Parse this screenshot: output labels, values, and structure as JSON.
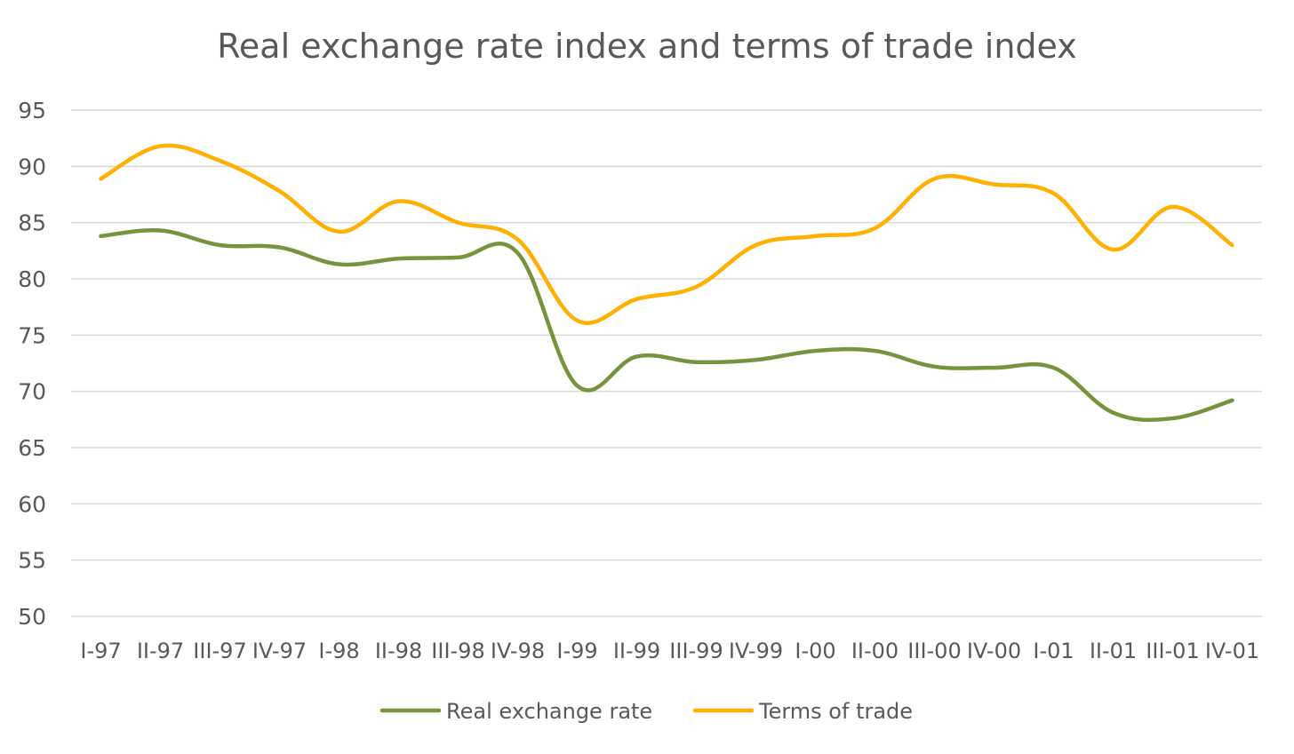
{
  "chart_data": {
    "type": "line",
    "title": "Real exchange rate index and terms of trade index",
    "xlabel": "",
    "ylabel": "",
    "ylim": [
      50,
      95
    ],
    "yticks": [
      50,
      55,
      60,
      65,
      70,
      75,
      80,
      85,
      90,
      95
    ],
    "grid": true,
    "legend_position": "bottom",
    "categories": [
      "I-97",
      "II-97",
      "III-97",
      "IV-97",
      "I-98",
      "II-98",
      "III-98",
      "IV-98",
      "I-99",
      "II-99",
      "III-99",
      "IV-99",
      "I-00",
      "II-00",
      "III-00",
      "IV-00",
      "I-01",
      "II-01",
      "III-01",
      "IV-01"
    ],
    "series": [
      {
        "name": "Real exchange rate",
        "color": "#77933c",
        "values": [
          83.8,
          84.3,
          83.0,
          82.8,
          81.3,
          81.8,
          81.9,
          82.3,
          70.5,
          73.1,
          72.6,
          72.8,
          73.6,
          73.6,
          72.2,
          72.1,
          72.1,
          68.1,
          67.6,
          69.2
        ]
      },
      {
        "name": "Terms of trade",
        "color": "#ffb000",
        "values": [
          88.9,
          91.8,
          90.5,
          87.8,
          84.2,
          86.9,
          85.0,
          83.5,
          76.3,
          78.2,
          79.3,
          83.0,
          83.8,
          84.5,
          88.9,
          88.4,
          87.6,
          82.6,
          86.4,
          83.0
        ]
      }
    ]
  }
}
